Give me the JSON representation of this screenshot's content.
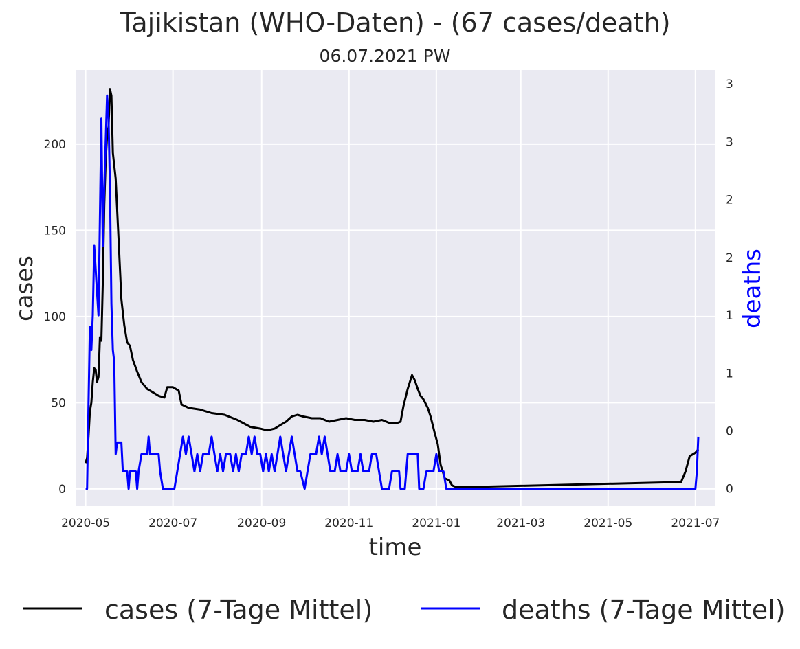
{
  "chart_data": {
    "type": "line",
    "title": "Tajikistan (WHO-Daten) - (67 cases/death)",
    "subtitle": "06.07.2021 PW",
    "xlabel": "time",
    "ylabel": "cases",
    "y2label": "deaths",
    "xlim": [
      "2020-04-24",
      "2021-07-15"
    ],
    "ylim": [
      -10,
      243
    ],
    "y2lim": [
      -0.15,
      3.62
    ],
    "x_ticks": [
      "2020-05-01",
      "2020-07-01",
      "2020-09-01",
      "2020-11-01",
      "2021-01-01",
      "2021-03-01",
      "2021-05-01",
      "2021-07-01"
    ],
    "x_tick_labels": [
      "2020-05",
      "2020-07",
      "2020-09",
      "2020-11",
      "2021-01",
      "2021-03",
      "2021-05",
      "2021-07"
    ],
    "y_ticks": [
      0,
      50,
      100,
      150,
      200
    ],
    "y_tick_labels": [
      "0",
      "50",
      "100",
      "150",
      "200"
    ],
    "y2_ticks": [
      0,
      0.5,
      1,
      1.5,
      2,
      2.5,
      3,
      3.5
    ],
    "y2_tick_labels": [
      "0",
      "0",
      "1",
      "1",
      "2",
      "2",
      "3",
      "3"
    ],
    "grid": true,
    "legend": "bottom-center",
    "series": [
      {
        "name": "cases (7-Tage Mittel)",
        "color": "#000000",
        "axis": "left",
        "points": [
          [
            "2020-05-01",
            15
          ],
          [
            "2020-05-02",
            18
          ],
          [
            "2020-05-03",
            30
          ],
          [
            "2020-05-04",
            45
          ],
          [
            "2020-05-05",
            50
          ],
          [
            "2020-05-06",
            62
          ],
          [
            "2020-05-07",
            70
          ],
          [
            "2020-05-08",
            69
          ],
          [
            "2020-05-09",
            62
          ],
          [
            "2020-05-10",
            65
          ],
          [
            "2020-05-11",
            88
          ],
          [
            "2020-05-12",
            86
          ],
          [
            "2020-05-13",
            120
          ],
          [
            "2020-05-14",
            165
          ],
          [
            "2020-05-15",
            190
          ],
          [
            "2020-05-16",
            205
          ],
          [
            "2020-05-17",
            210
          ],
          [
            "2020-05-18",
            232
          ],
          [
            "2020-05-19",
            228
          ],
          [
            "2020-05-20",
            195
          ],
          [
            "2020-05-22",
            180
          ],
          [
            "2020-05-24",
            145
          ],
          [
            "2020-05-26",
            110
          ],
          [
            "2020-05-28",
            95
          ],
          [
            "2020-05-30",
            85
          ],
          [
            "2020-06-01",
            83
          ],
          [
            "2020-06-03",
            75
          ],
          [
            "2020-06-06",
            68
          ],
          [
            "2020-06-09",
            62
          ],
          [
            "2020-06-13",
            58
          ],
          [
            "2020-06-17",
            56
          ],
          [
            "2020-06-21",
            54
          ],
          [
            "2020-06-25",
            53
          ],
          [
            "2020-06-27",
            59
          ],
          [
            "2020-07-01",
            59
          ],
          [
            "2020-07-05",
            57
          ],
          [
            "2020-07-07",
            49
          ],
          [
            "2020-07-12",
            47
          ],
          [
            "2020-07-20",
            46
          ],
          [
            "2020-07-28",
            44
          ],
          [
            "2020-08-06",
            43
          ],
          [
            "2020-08-15",
            40
          ],
          [
            "2020-08-24",
            36
          ],
          [
            "2020-08-31",
            35
          ],
          [
            "2020-09-05",
            34
          ],
          [
            "2020-09-10",
            35
          ],
          [
            "2020-09-14",
            37
          ],
          [
            "2020-09-18",
            39
          ],
          [
            "2020-09-22",
            42
          ],
          [
            "2020-09-26",
            43
          ],
          [
            "2020-09-30",
            42
          ],
          [
            "2020-10-06",
            41
          ],
          [
            "2020-10-12",
            41
          ],
          [
            "2020-10-18",
            39
          ],
          [
            "2020-10-24",
            40
          ],
          [
            "2020-10-30",
            41
          ],
          [
            "2020-11-05",
            40
          ],
          [
            "2020-11-12",
            40
          ],
          [
            "2020-11-18",
            39
          ],
          [
            "2020-11-24",
            40
          ],
          [
            "2020-11-30",
            38
          ],
          [
            "2020-12-04",
            38
          ],
          [
            "2020-12-07",
            39
          ],
          [
            "2020-12-09",
            48
          ],
          [
            "2020-12-12",
            58
          ],
          [
            "2020-12-15",
            66
          ],
          [
            "2020-12-17",
            63
          ],
          [
            "2020-12-19",
            58
          ],
          [
            "2020-12-21",
            54
          ],
          [
            "2020-12-23",
            52
          ],
          [
            "2020-12-26",
            47
          ],
          [
            "2020-12-28",
            42
          ],
          [
            "2020-12-31",
            32
          ],
          [
            "2021-01-02",
            26
          ],
          [
            "2021-01-04",
            14
          ],
          [
            "2021-01-07",
            6
          ],
          [
            "2021-01-10",
            5
          ],
          [
            "2021-01-12",
            2
          ],
          [
            "2021-01-15",
            1
          ],
          [
            "2021-01-20",
            1
          ],
          [
            "2021-06-21",
            4
          ],
          [
            "2021-06-24",
            10
          ],
          [
            "2021-06-27",
            19
          ],
          [
            "2021-07-01",
            21
          ],
          [
            "2021-07-03",
            23
          ]
        ]
      },
      {
        "name": "deaths (7-Tage Mittel)",
        "color": "#0000ff",
        "axis": "right",
        "points": [
          [
            "2020-05-01",
            0
          ],
          [
            "2020-05-02",
            0
          ],
          [
            "2020-05-03",
            0.7
          ],
          [
            "2020-05-04",
            1.4
          ],
          [
            "2020-05-05",
            1.2
          ],
          [
            "2020-05-06",
            1.5
          ],
          [
            "2020-05-07",
            2.1
          ],
          [
            "2020-05-09",
            1.7
          ],
          [
            "2020-05-10",
            1.5
          ],
          [
            "2020-05-12",
            3.2
          ],
          [
            "2020-05-13",
            2.1
          ],
          [
            "2020-05-14",
            2.6
          ],
          [
            "2020-05-16",
            3.4
          ],
          [
            "2020-05-17",
            3.2
          ],
          [
            "2020-05-18",
            2.6
          ],
          [
            "2020-05-19",
            1.6
          ],
          [
            "2020-05-20",
            1.2
          ],
          [
            "2020-05-21",
            1.1
          ],
          [
            "2020-05-22",
            0.3
          ],
          [
            "2020-05-23",
            0.4
          ],
          [
            "2020-05-26",
            0.4
          ],
          [
            "2020-05-27",
            0.15
          ],
          [
            "2020-05-30",
            0.15
          ],
          [
            "2020-05-31",
            0
          ],
          [
            "2020-06-01",
            0.15
          ],
          [
            "2020-06-05",
            0.15
          ],
          [
            "2020-06-06",
            0
          ],
          [
            "2020-06-07",
            0.15
          ],
          [
            "2020-06-09",
            0.3
          ],
          [
            "2020-06-13",
            0.3
          ],
          [
            "2020-06-14",
            0.45
          ],
          [
            "2020-06-15",
            0.3
          ],
          [
            "2020-06-21",
            0.3
          ],
          [
            "2020-06-22",
            0.15
          ],
          [
            "2020-06-24",
            0
          ],
          [
            "2020-07-02",
            0
          ],
          [
            "2020-07-04",
            0.15
          ],
          [
            "2020-07-06",
            0.3
          ],
          [
            "2020-07-08",
            0.45
          ],
          [
            "2020-07-10",
            0.3
          ],
          [
            "2020-07-12",
            0.45
          ],
          [
            "2020-07-14",
            0.3
          ],
          [
            "2020-07-16",
            0.15
          ],
          [
            "2020-07-18",
            0.3
          ],
          [
            "2020-07-20",
            0.15
          ],
          [
            "2020-07-22",
            0.3
          ],
          [
            "2020-07-26",
            0.3
          ],
          [
            "2020-07-28",
            0.45
          ],
          [
            "2020-07-30",
            0.3
          ],
          [
            "2020-08-01",
            0.15
          ],
          [
            "2020-08-03",
            0.3
          ],
          [
            "2020-08-05",
            0.15
          ],
          [
            "2020-08-07",
            0.3
          ],
          [
            "2020-08-10",
            0.3
          ],
          [
            "2020-08-12",
            0.15
          ],
          [
            "2020-08-14",
            0.3
          ],
          [
            "2020-08-16",
            0.15
          ],
          [
            "2020-08-18",
            0.3
          ],
          [
            "2020-08-21",
            0.3
          ],
          [
            "2020-08-23",
            0.45
          ],
          [
            "2020-08-25",
            0.3
          ],
          [
            "2020-08-27",
            0.45
          ],
          [
            "2020-08-29",
            0.3
          ],
          [
            "2020-08-31",
            0.3
          ],
          [
            "2020-09-02",
            0.15
          ],
          [
            "2020-09-04",
            0.3
          ],
          [
            "2020-09-06",
            0.15
          ],
          [
            "2020-09-08",
            0.3
          ],
          [
            "2020-09-10",
            0.15
          ],
          [
            "2020-09-12",
            0.3
          ],
          [
            "2020-09-14",
            0.45
          ],
          [
            "2020-09-16",
            0.3
          ],
          [
            "2020-09-18",
            0.15
          ],
          [
            "2020-09-20",
            0.3
          ],
          [
            "2020-09-22",
            0.45
          ],
          [
            "2020-09-24",
            0.3
          ],
          [
            "2020-09-26",
            0.15
          ],
          [
            "2020-09-28",
            0.15
          ],
          [
            "2020-10-01",
            0
          ],
          [
            "2020-10-03",
            0.15
          ],
          [
            "2020-10-05",
            0.3
          ],
          [
            "2020-10-09",
            0.3
          ],
          [
            "2020-10-11",
            0.45
          ],
          [
            "2020-10-13",
            0.3
          ],
          [
            "2020-10-15",
            0.45
          ],
          [
            "2020-10-17",
            0.3
          ],
          [
            "2020-10-19",
            0.15
          ],
          [
            "2020-10-22",
            0.15
          ],
          [
            "2020-10-24",
            0.3
          ],
          [
            "2020-10-26",
            0.15
          ],
          [
            "2020-10-30",
            0.15
          ],
          [
            "2020-11-01",
            0.3
          ],
          [
            "2020-11-03",
            0.15
          ],
          [
            "2020-11-07",
            0.15
          ],
          [
            "2020-11-09",
            0.3
          ],
          [
            "2020-11-11",
            0.15
          ],
          [
            "2020-11-15",
            0.15
          ],
          [
            "2020-11-17",
            0.3
          ],
          [
            "2020-11-20",
            0.3
          ],
          [
            "2020-11-22",
            0.15
          ],
          [
            "2020-11-24",
            0
          ],
          [
            "2020-11-29",
            0
          ],
          [
            "2020-12-01",
            0.15
          ],
          [
            "2020-12-06",
            0.15
          ],
          [
            "2020-12-07",
            0
          ],
          [
            "2020-12-10",
            0
          ],
          [
            "2020-12-12",
            0.3
          ],
          [
            "2020-12-19",
            0.3
          ],
          [
            "2020-12-20",
            0
          ],
          [
            "2020-12-23",
            0
          ],
          [
            "2020-12-25",
            0.15
          ],
          [
            "2020-12-30",
            0.15
          ],
          [
            "2021-01-01",
            0.3
          ],
          [
            "2021-01-03",
            0.15
          ],
          [
            "2021-01-06",
            0.15
          ],
          [
            "2021-01-08",
            0
          ],
          [
            "2021-07-01",
            0
          ],
          [
            "2021-07-02",
            0.15
          ],
          [
            "2021-07-03",
            0.45
          ]
        ]
      }
    ]
  }
}
